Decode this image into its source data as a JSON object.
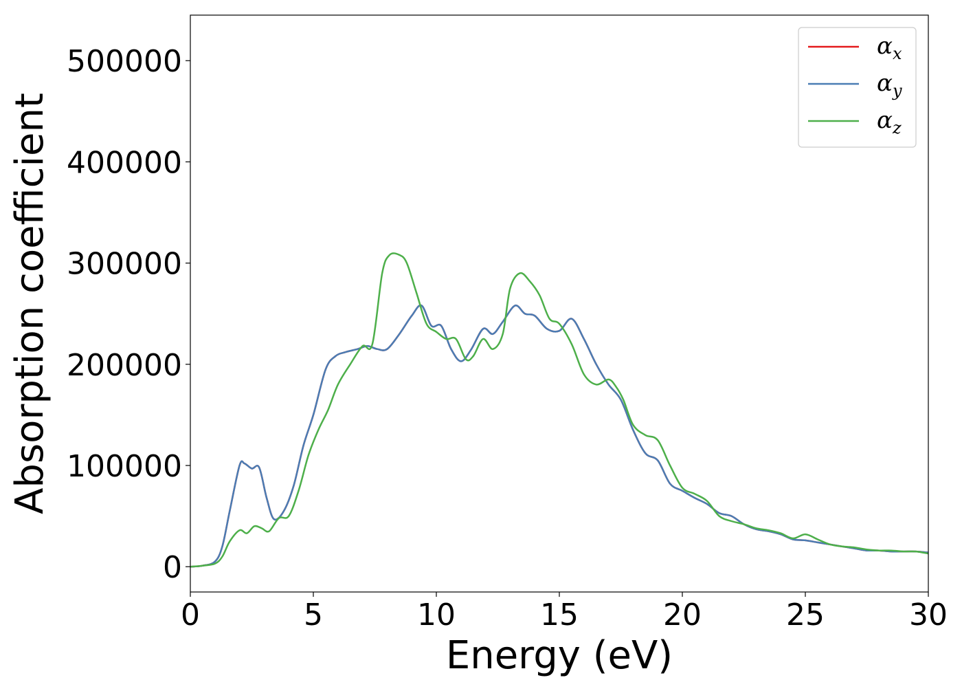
{
  "chart_data": {
    "type": "line",
    "title": "",
    "xlabel": "Energy (eV)",
    "ylabel": "Absorption coefficient",
    "xlim": [
      0,
      30
    ],
    "ylim": [
      -25000,
      545000
    ],
    "xticks": [
      0,
      5,
      10,
      15,
      20,
      25,
      30
    ],
    "yticks": [
      0,
      100000,
      200000,
      300000,
      400000,
      500000
    ],
    "grid": false,
    "legend_position": "top-right",
    "series": [
      {
        "name": "αx",
        "base": "α",
        "sub": "x",
        "color": "#e41a1c",
        "x": [
          0,
          0.5,
          1.0,
          1.3,
          1.6,
          2.0,
          2.2,
          2.5,
          2.8,
          3.1,
          3.4,
          3.8,
          4.2,
          4.6,
          5.0,
          5.5,
          5.9,
          6.3,
          6.8,
          7.2,
          7.6,
          8.0,
          8.5,
          9.0,
          9.4,
          9.8,
          10.2,
          10.6,
          11.0,
          11.4,
          11.9,
          12.3,
          12.7,
          13.2,
          13.6,
          14.0,
          14.5,
          15.0,
          15.5,
          16.0,
          16.5,
          17.0,
          17.5,
          18.0,
          18.5,
          19.0,
          19.5,
          20.0,
          20.5,
          21.0,
          21.5,
          22.0,
          22.5,
          23.0,
          23.5,
          24.0,
          24.5,
          25.0,
          25.5,
          26.0,
          26.5,
          27.0,
          27.5,
          28.0,
          28.5,
          29.0,
          29.5,
          30.0
        ],
        "y": [
          0,
          1000,
          5000,
          20000,
          55000,
          100000,
          102000,
          97000,
          98000,
          68000,
          47000,
          55000,
          80000,
          120000,
          150000,
          195000,
          208000,
          212000,
          215000,
          218000,
          215000,
          215000,
          230000,
          248000,
          258000,
          238000,
          238000,
          215000,
          203000,
          214000,
          235000,
          230000,
          242000,
          258000,
          250000,
          248000,
          235000,
          233000,
          245000,
          225000,
          200000,
          180000,
          165000,
          135000,
          112000,
          105000,
          82000,
          75000,
          68000,
          62000,
          53000,
          50000,
          42000,
          37000,
          35000,
          32000,
          27000,
          26000,
          24000,
          22000,
          20000,
          18000,
          16000,
          16000,
          15000,
          15000,
          15000,
          14000
        ]
      },
      {
        "name": "αy",
        "base": "α",
        "sub": "y",
        "color": "#4a7db4",
        "x": [
          0,
          0.5,
          1.0,
          1.3,
          1.6,
          2.0,
          2.2,
          2.5,
          2.8,
          3.1,
          3.4,
          3.8,
          4.2,
          4.6,
          5.0,
          5.5,
          5.9,
          6.3,
          6.8,
          7.2,
          7.6,
          8.0,
          8.5,
          9.0,
          9.4,
          9.8,
          10.2,
          10.6,
          11.0,
          11.4,
          11.9,
          12.3,
          12.7,
          13.2,
          13.6,
          14.0,
          14.5,
          15.0,
          15.5,
          16.0,
          16.5,
          17.0,
          17.5,
          18.0,
          18.5,
          19.0,
          19.5,
          20.0,
          20.5,
          21.0,
          21.5,
          22.0,
          22.5,
          23.0,
          23.5,
          24.0,
          24.5,
          25.0,
          25.5,
          26.0,
          26.5,
          27.0,
          27.5,
          28.0,
          28.5,
          29.0,
          29.5,
          30.0
        ],
        "y": [
          0,
          1000,
          5000,
          20000,
          55000,
          100000,
          102000,
          97000,
          98000,
          68000,
          47000,
          55000,
          80000,
          120000,
          150000,
          195000,
          208000,
          212000,
          215000,
          218000,
          215000,
          215000,
          230000,
          248000,
          258000,
          238000,
          238000,
          215000,
          203000,
          214000,
          235000,
          230000,
          242000,
          258000,
          250000,
          248000,
          235000,
          233000,
          245000,
          225000,
          200000,
          180000,
          165000,
          135000,
          112000,
          105000,
          82000,
          75000,
          68000,
          62000,
          53000,
          50000,
          42000,
          37000,
          35000,
          32000,
          27000,
          26000,
          24000,
          22000,
          20000,
          18000,
          16000,
          16000,
          15000,
          15000,
          15000,
          14000
        ]
      },
      {
        "name": "αz",
        "base": "α",
        "sub": "z",
        "color": "#4daf4a",
        "x": [
          0,
          0.5,
          1.0,
          1.3,
          1.6,
          2.0,
          2.3,
          2.6,
          2.9,
          3.2,
          3.6,
          4.0,
          4.4,
          4.8,
          5.2,
          5.6,
          6.0,
          6.5,
          7.0,
          7.4,
          7.8,
          8.1,
          8.5,
          8.8,
          9.2,
          9.6,
          10.0,
          10.4,
          10.8,
          11.2,
          11.5,
          11.9,
          12.3,
          12.7,
          13.0,
          13.4,
          13.8,
          14.2,
          14.6,
          15.0,
          15.5,
          16.0,
          16.5,
          17.0,
          17.3,
          17.6,
          18.0,
          18.5,
          19.0,
          19.5,
          20.0,
          20.5,
          21.0,
          21.5,
          22.0,
          22.5,
          23.0,
          23.5,
          24.0,
          24.5,
          25.0,
          25.5,
          26.0,
          26.5,
          27.0,
          27.5,
          28.0,
          28.5,
          29.0,
          29.5,
          30.0
        ],
        "y": [
          0,
          1000,
          3000,
          10000,
          25000,
          36000,
          33000,
          40000,
          38000,
          35000,
          48000,
          50000,
          75000,
          110000,
          135000,
          155000,
          180000,
          200000,
          218000,
          220000,
          290000,
          308000,
          308000,
          300000,
          270000,
          240000,
          232000,
          225000,
          225000,
          205000,
          208000,
          225000,
          215000,
          230000,
          275000,
          290000,
          282000,
          268000,
          245000,
          240000,
          220000,
          190000,
          180000,
          185000,
          178000,
          165000,
          140000,
          130000,
          125000,
          100000,
          78000,
          72000,
          65000,
          50000,
          45000,
          42000,
          38000,
          36000,
          33000,
          28000,
          32000,
          27000,
          22000,
          20000,
          19000,
          17000,
          16000,
          16000,
          15000,
          15000,
          13000
        ]
      }
    ]
  }
}
